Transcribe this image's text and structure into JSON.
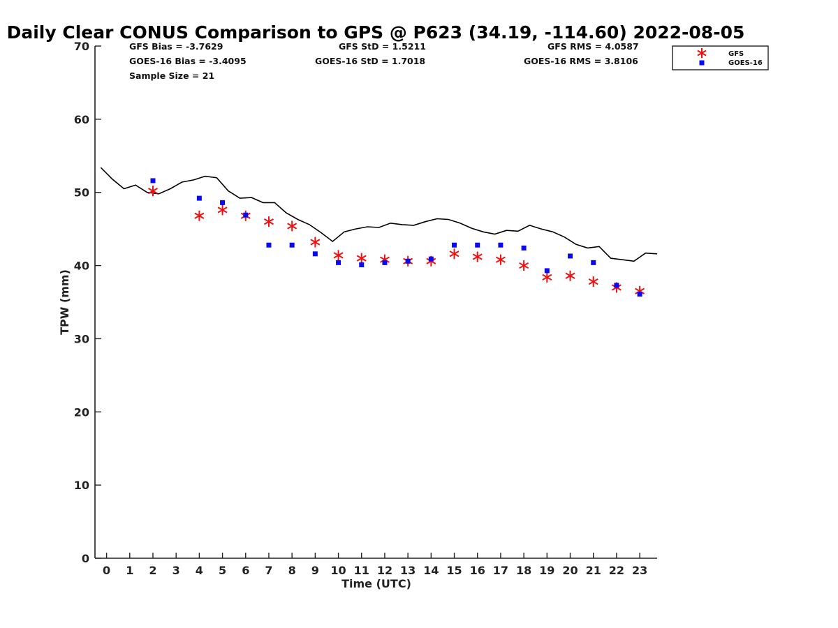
{
  "chart_data": {
    "type": "scatter",
    "title": "Daily Clear CONUS Comparison to GPS @ P623 (34.19, -114.60) 2022-08-05",
    "xlabel": "Time (UTC)",
    "ylabel": "TPW (mm)",
    "xlim": [
      -0.5,
      23.75
    ],
    "ylim": [
      0,
      70
    ],
    "x_ticks": [
      "0",
      "1",
      "2",
      "3",
      "4",
      "5",
      "6",
      "7",
      "8",
      "9",
      "10",
      "11",
      "12",
      "13",
      "14",
      "15",
      "16",
      "17",
      "18",
      "19",
      "20",
      "21",
      "22",
      "23"
    ],
    "y_ticks": [
      "0",
      "10",
      "20",
      "30",
      "40",
      "50",
      "60",
      "70"
    ],
    "grid": false,
    "legend_position": "top-right, outside plot",
    "stats": [
      {
        "label": "GFS Bias = -3.7629"
      },
      {
        "label": "GFS StD = 1.5211"
      },
      {
        "label": "GFS RMS = 4.0587"
      },
      {
        "label": "GOES-16 Bias = -3.4095"
      },
      {
        "label": "GOES-16 StD = 1.7018"
      },
      {
        "label": "GOES-16 RMS = 3.8106"
      },
      {
        "label": "Sample Size = 21"
      }
    ],
    "series": [
      {
        "kind": "line",
        "color": "#000000",
        "x": [
          -0.25,
          0.25,
          0.75,
          1.25,
          1.75,
          2.25,
          2.75,
          3.25,
          3.75,
          4.25,
          4.75,
          5.25,
          5.75,
          6.25,
          6.75,
          7.25,
          7.75,
          8.25,
          8.75,
          9.25,
          9.75,
          10.25,
          10.75,
          11.25,
          11.75,
          12.25,
          12.75,
          13.25,
          13.75,
          14.25,
          14.75,
          15.25,
          15.75,
          16.25,
          16.75,
          17.25,
          17.75,
          18.25,
          18.75,
          19.25,
          19.75,
          20.25,
          20.75,
          21.25,
          21.75,
          22.25,
          22.75,
          23.25,
          23.75
        ],
        "y": [
          53.4,
          51.8,
          50.5,
          51.0,
          50.0,
          49.8,
          50.5,
          51.4,
          51.7,
          52.2,
          52.0,
          50.2,
          49.2,
          49.3,
          48.6,
          48.6,
          47.2,
          46.3,
          45.6,
          44.5,
          43.3,
          44.6,
          45.0,
          45.3,
          45.2,
          45.8,
          45.6,
          45.5,
          46.0,
          46.4,
          46.3,
          45.8,
          45.1,
          44.6,
          44.3,
          44.8,
          44.7,
          45.5,
          45.0,
          44.6,
          43.9,
          42.9,
          42.4,
          42.6,
          41.0,
          40.8,
          40.6,
          41.7,
          41.6
        ]
      },
      {
        "name": "GFS",
        "kind": "asterisk",
        "color": "#ee1111",
        "x": [
          2,
          4,
          5,
          6,
          7,
          8,
          9,
          10,
          11,
          12,
          13,
          14,
          15,
          16,
          17,
          18,
          19,
          20,
          21,
          22,
          23
        ],
        "y": [
          50.2,
          46.8,
          47.6,
          46.8,
          46.0,
          45.4,
          43.2,
          41.4,
          41.0,
          40.8,
          40.6,
          40.6,
          41.6,
          41.2,
          40.8,
          40.0,
          38.4,
          38.6,
          37.8,
          37.0,
          36.5
        ]
      },
      {
        "name": "GOES-16",
        "kind": "square",
        "color": "#0a0af0",
        "x": [
          2,
          4,
          5,
          6,
          7,
          8,
          9,
          10,
          11,
          12,
          13,
          14,
          15,
          16,
          17,
          18,
          19,
          20,
          21,
          22,
          23
        ],
        "y": [
          51.6,
          49.2,
          48.6,
          46.9,
          42.8,
          42.8,
          41.6,
          40.4,
          40.1,
          40.4,
          40.6,
          40.9,
          42.8,
          42.8,
          42.8,
          42.4,
          39.3,
          41.3,
          40.4,
          37.3,
          36.1
        ]
      }
    ]
  }
}
